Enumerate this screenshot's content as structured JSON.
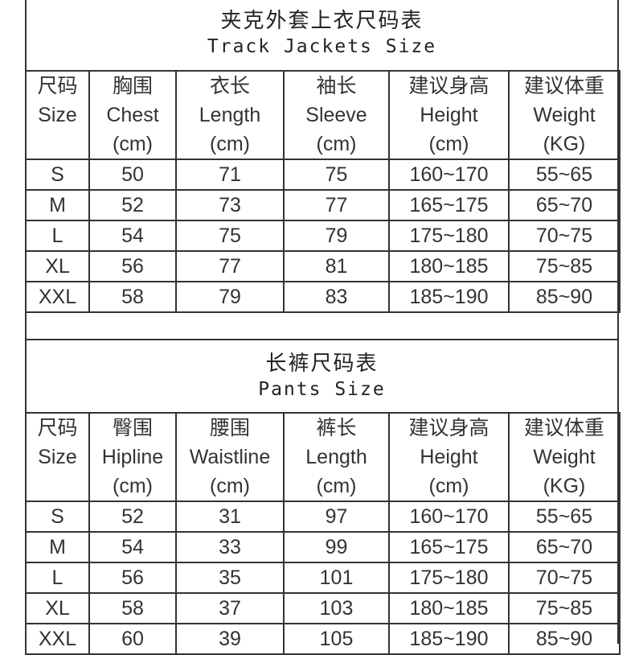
{
  "jackets": {
    "title_zh": "夹克外套上衣尺码表",
    "title_en": "Track Jackets Size",
    "headers": [
      {
        "zh": "尺码",
        "en": "Size",
        "unit": ""
      },
      {
        "zh": "胸围",
        "en": "Chest",
        "unit": "(cm)"
      },
      {
        "zh": "衣长",
        "en": "Length",
        "unit": "(cm)"
      },
      {
        "zh": "袖长",
        "en": "Sleeve",
        "unit": "(cm)"
      },
      {
        "zh": "建议身高",
        "en": "Height",
        "unit": "(cm)"
      },
      {
        "zh": "建议体重",
        "en": "Weight",
        "unit": "(KG)"
      }
    ],
    "rows": [
      [
        "S",
        "50",
        "71",
        "75",
        "160~170",
        "55~65"
      ],
      [
        "M",
        "52",
        "73",
        "77",
        "165~175",
        "65~70"
      ],
      [
        "L",
        "54",
        "75",
        "79",
        "175~180",
        "70~75"
      ],
      [
        "XL",
        "56",
        "77",
        "81",
        "180~185",
        "75~85"
      ],
      [
        "XXL",
        "58",
        "79",
        "83",
        "185~190",
        "85~90"
      ]
    ]
  },
  "pants": {
    "title_zh": "长裤尺码表",
    "title_en": "Pants Size",
    "headers": [
      {
        "zh": "尺码",
        "en": "Size",
        "unit": ""
      },
      {
        "zh": "臀围",
        "en": "Hipline",
        "unit": "(cm)"
      },
      {
        "zh": "腰围",
        "en": "Waistline",
        "unit": "(cm)"
      },
      {
        "zh": "裤长",
        "en": "Length",
        "unit": "(cm)"
      },
      {
        "zh": "建议身高",
        "en": "Height",
        "unit": "(cm)"
      },
      {
        "zh": "建议体重",
        "en": "Weight",
        "unit": "(KG)"
      }
    ],
    "rows": [
      [
        "S",
        "52",
        "31",
        "97",
        "160~170",
        "55~65"
      ],
      [
        "M",
        "54",
        "33",
        "99",
        "165~175",
        "65~70"
      ],
      [
        "L",
        "56",
        "35",
        "101",
        "175~180",
        "70~75"
      ],
      [
        "XL",
        "58",
        "37",
        "103",
        "180~185",
        "75~85"
      ],
      [
        "XXL",
        "60",
        "39",
        "105",
        "185~190",
        "85~90"
      ]
    ]
  }
}
